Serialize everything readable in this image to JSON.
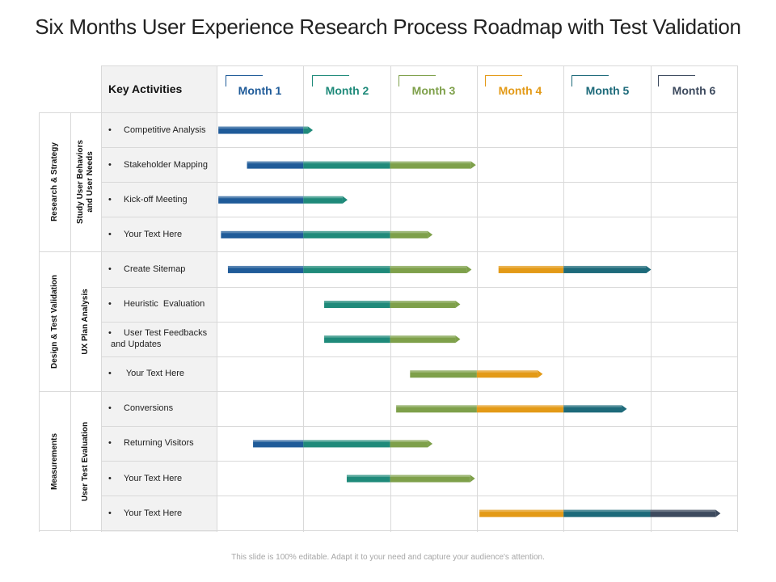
{
  "title": "Six Months User Experience Research Process Roadmap with Test Validation",
  "footer": "This slide is 100% editable. Adapt it to your need and capture your audience's attention.",
  "header": {
    "key_activities": "Key Activities",
    "months": [
      {
        "label": "Month 1",
        "color": "#1f5b99"
      },
      {
        "label": "Month 2",
        "color": "#1f8a7a"
      },
      {
        "label": "Month 3",
        "color": "#7ea04a"
      },
      {
        "label": "Month 4",
        "color": "#e39a17"
      },
      {
        "label": "Month 5",
        "color": "#1d6a7a"
      },
      {
        "label": "Month 6",
        "color": "#3d4a5e"
      }
    ]
  },
  "phases": [
    {
      "name": "Research & Strategy",
      "sub": "Study User Behaviors and User Needs"
    },
    {
      "name": "Design & Test Validation",
      "sub": "UX Plan Analysis"
    },
    {
      "name": "Measurements",
      "sub": "User Test Evaluation"
    }
  ],
  "activities": [
    {
      "label": "Competitive Analysis",
      "start": 0.02,
      "end": 1.1
    },
    {
      "label": "Stakeholder Mapping",
      "start": 0.35,
      "end": 2.98
    },
    {
      "label": "Kick-off Meeting",
      "start": 0.02,
      "end": 1.5
    },
    {
      "label": "Your Text Here",
      "start": 0.05,
      "end": 2.48
    },
    {
      "label": "Create Sitemap",
      "start": 0.13,
      "end": 2.93,
      "start2": 3.25,
      "end2": 5.0
    },
    {
      "label": "Heuristic  Evaluation",
      "start": 1.24,
      "end": 2.8
    },
    {
      "label": "User Test Feedbacks\n and Updates",
      "start": 1.24,
      "end": 2.8
    },
    {
      "label": " Your Text Here",
      "start": 2.23,
      "end": 3.75
    },
    {
      "label": "Conversions",
      "start": 2.07,
      "end": 4.72
    },
    {
      "label": "Returning Visitors",
      "start": 0.42,
      "end": 2.48
    },
    {
      "label": "Your Text Here",
      "start": 1.5,
      "end": 2.97
    },
    {
      "label": "Your Text Here",
      "start": 3.03,
      "end": 5.8
    }
  ]
}
